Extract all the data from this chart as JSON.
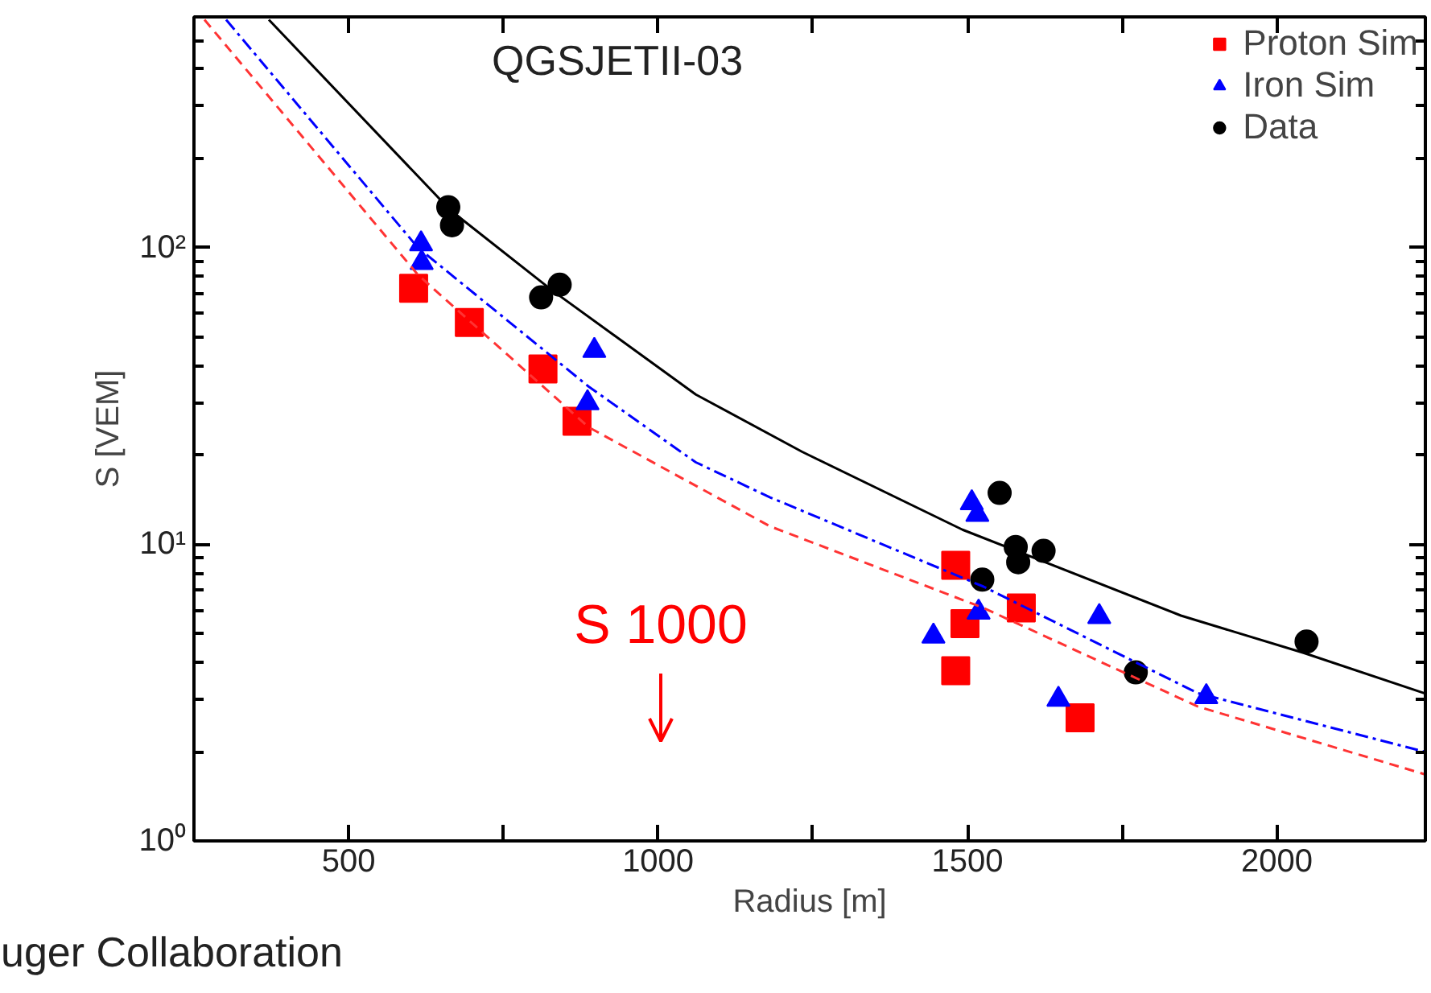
{
  "chart_data": {
    "type": "scatter",
    "xlabel": "Radius [m]",
    "ylabel": "S [VEM]",
    "log": "y",
    "grid": false,
    "legend": "top right",
    "xlim": [
      250,
      2240
    ],
    "ylim": [
      1,
      600
    ],
    "xticks": [
      500,
      {
        "value": 750,
        "label": null
      },
      1000,
      {
        "value": 1250,
        "label": null
      },
      1500,
      {
        "value": 1750,
        "label": null
      },
      2000
    ],
    "yticks": [
      {
        "value": 1,
        "label": "10⁰"
      },
      {
        "value": 10,
        "label": "10¹"
      },
      {
        "value": 100,
        "label": "10²"
      }
    ],
    "annotations": [
      "QGSJETII-03",
      "S 1000",
      "uger Collaboration"
    ],
    "series": [
      {
        "name": "Proton Sim",
        "marker": "square",
        "color": "#ff0000",
        "x": [
          605,
          695,
          814,
          869,
          1481,
          1496,
          1481,
          1587,
          1682
        ],
        "values": [
          73,
          56,
          39,
          26,
          8.5,
          5.4,
          3.75,
          6.1,
          2.6
        ]
      },
      {
        "name": "Iron Sim",
        "marker": "triangle",
        "color": "#0000ff",
        "x": [
          617,
          618,
          897,
          886,
          1507,
          1516,
          1518,
          1445,
          1713,
          1647,
          1886
        ],
        "values": [
          103,
          89,
          45,
          30,
          13.8,
          12.6,
          5.9,
          4.9,
          5.7,
          3.0,
          3.06
        ]
      },
      {
        "name": "Data",
        "marker": "circle",
        "color": "#000000",
        "x": [
          661,
          667,
          811,
          841,
          1552,
          1578,
          1582,
          1623,
          1524,
          1772,
          2048
        ],
        "values": [
          137,
          119,
          68,
          75,
          14.9,
          9.8,
          8.7,
          9.5,
          7.6,
          3.7,
          4.7
        ]
      },
      {
        "type": "line",
        "line_style": "solid",
        "color": "#000000",
        "x": [
          371,
          664,
          828,
          1061,
          1233,
          1492,
          1845,
          2044,
          2238
        ],
        "values": [
          587,
          134,
          72,
          32,
          20.5,
          11.2,
          5.75,
          4.3,
          3.15
        ]
      },
      {
        "type": "line",
        "line_style": "dashdot",
        "color": "#0000ff",
        "x": [
          302,
          612,
          888,
          1061,
          1181,
          1526,
          1872,
          2238
        ],
        "values": [
          587,
          100,
          34,
          18.9,
          14.4,
          7.2,
          3.15,
          2.0
        ]
      },
      {
        "type": "line",
        "line_style": "dashed",
        "color": "#ff3333",
        "x": [
          267,
          612,
          888,
          1181,
          1526,
          1872,
          2238
        ],
        "values": [
          587,
          81,
          24.8,
          11.5,
          6.1,
          2.84,
          1.68
        ]
      }
    ]
  }
}
